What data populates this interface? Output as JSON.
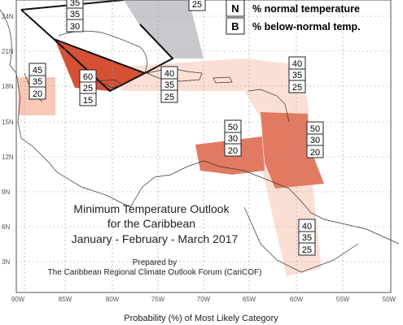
{
  "title": {
    "line1": "Minimum Temperature Outlook",
    "line2": "for the Caribbean",
    "line3": "January - February - March 2017"
  },
  "prepared": {
    "line1": "Prepared by",
    "line2": "The Caribbean Regional Climate Outlook Forum (CariCOF)"
  },
  "legend": [
    {
      "key": "N",
      "text": "% normal temperature"
    },
    {
      "key": "B",
      "text": "% below-normal temp."
    }
  ],
  "footer": "Probability (%) of Most Likely Category",
  "x_ticks": [
    "90W",
    "85W",
    "80W",
    "75W",
    "70W",
    "65W",
    "60W",
    "55W",
    "50W"
  ],
  "y_ticks": [
    "24N",
    "21N",
    "18N",
    "15N",
    "12N",
    "9N",
    "6N",
    "3N"
  ],
  "colors": {
    "dark_red": "#d55035",
    "medium_red": "#e27a62",
    "light_pink": "#fbdfd5",
    "salmon": "#f5b49e",
    "gray": "#c8c9cc",
    "grid": "#999999"
  },
  "probability_boxes": [
    {
      "id": "top-partial",
      "values": [
        "35",
        "35",
        "30"
      ]
    },
    {
      "id": "top-right-partial",
      "values": [
        "25"
      ]
    },
    {
      "id": "belize",
      "values": [
        "45",
        "35",
        "20"
      ]
    },
    {
      "id": "jamaica",
      "values": [
        "60",
        "25",
        "15"
      ]
    },
    {
      "id": "hispaniola",
      "values": [
        "40",
        "35",
        "25"
      ]
    },
    {
      "id": "leewards",
      "values": [
        "40",
        "35",
        "25"
      ]
    },
    {
      "id": "abc-islands",
      "values": [
        "50",
        "30",
        "20"
      ]
    },
    {
      "id": "windwards",
      "values": [
        "50",
        "30",
        "20"
      ]
    },
    {
      "id": "guianas",
      "values": [
        "40",
        "35",
        "25"
      ]
    }
  ]
}
